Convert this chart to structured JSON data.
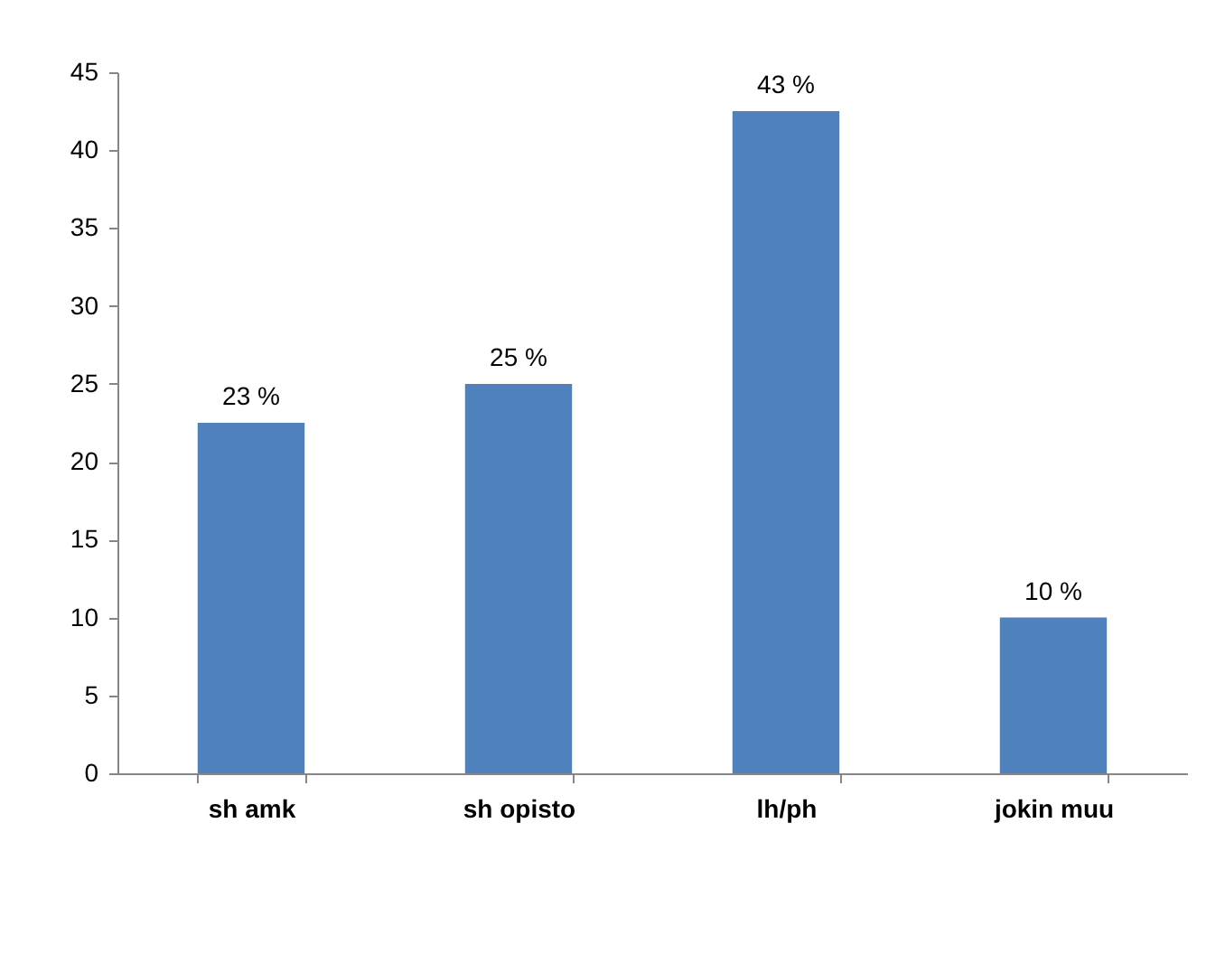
{
  "chart_data": {
    "type": "bar",
    "categories": [
      "sh amk",
      "sh opisto",
      "lh/ph",
      "jokin muu"
    ],
    "values": [
      22.5,
      25,
      42.5,
      10
    ],
    "value_labels": [
      "23 %",
      "25 %",
      "43 %",
      "10 %"
    ],
    "color": "#4f81bd",
    "ylim": [
      0,
      45
    ],
    "yticks": [
      0,
      5,
      10,
      15,
      20,
      25,
      30,
      35,
      40,
      45
    ],
    "grid": false
  }
}
